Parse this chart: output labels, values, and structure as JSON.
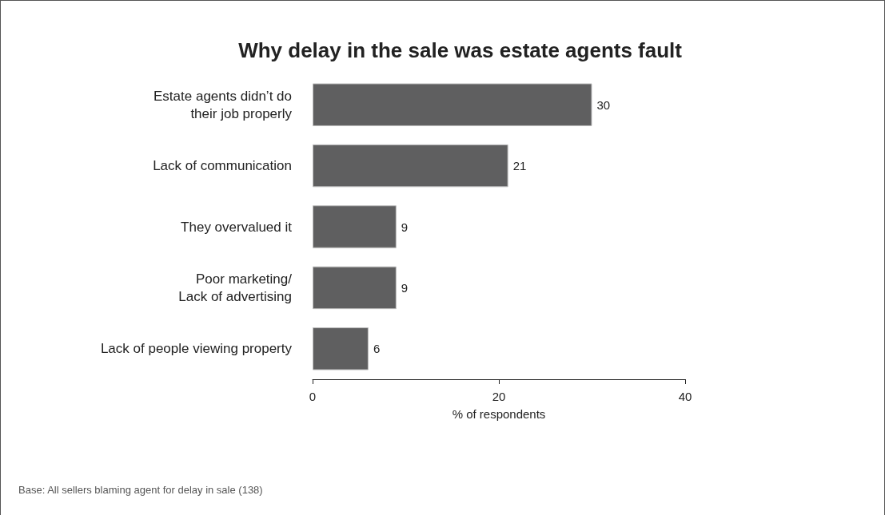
{
  "chart_data": {
    "type": "bar",
    "orientation": "horizontal",
    "title": "Why delay in the sale was estate agents fault",
    "xlabel": "% of respondents",
    "categories": [
      "Estate agents didn’t do\ntheir job properly",
      "Lack of communication",
      "They overvalued it",
      "Poor marketing/\nLack of advertising",
      "Lack of people viewing property"
    ],
    "values": [
      30,
      21,
      9,
      9,
      6
    ],
    "color": "#5f5f60",
    "xlim": [
      0,
      40
    ],
    "xticks": [
      0,
      20,
      40
    ],
    "data_labels": true,
    "grid": false,
    "annotations": [
      "Base: All sellers blaming agent for delay in sale (138)"
    ]
  }
}
